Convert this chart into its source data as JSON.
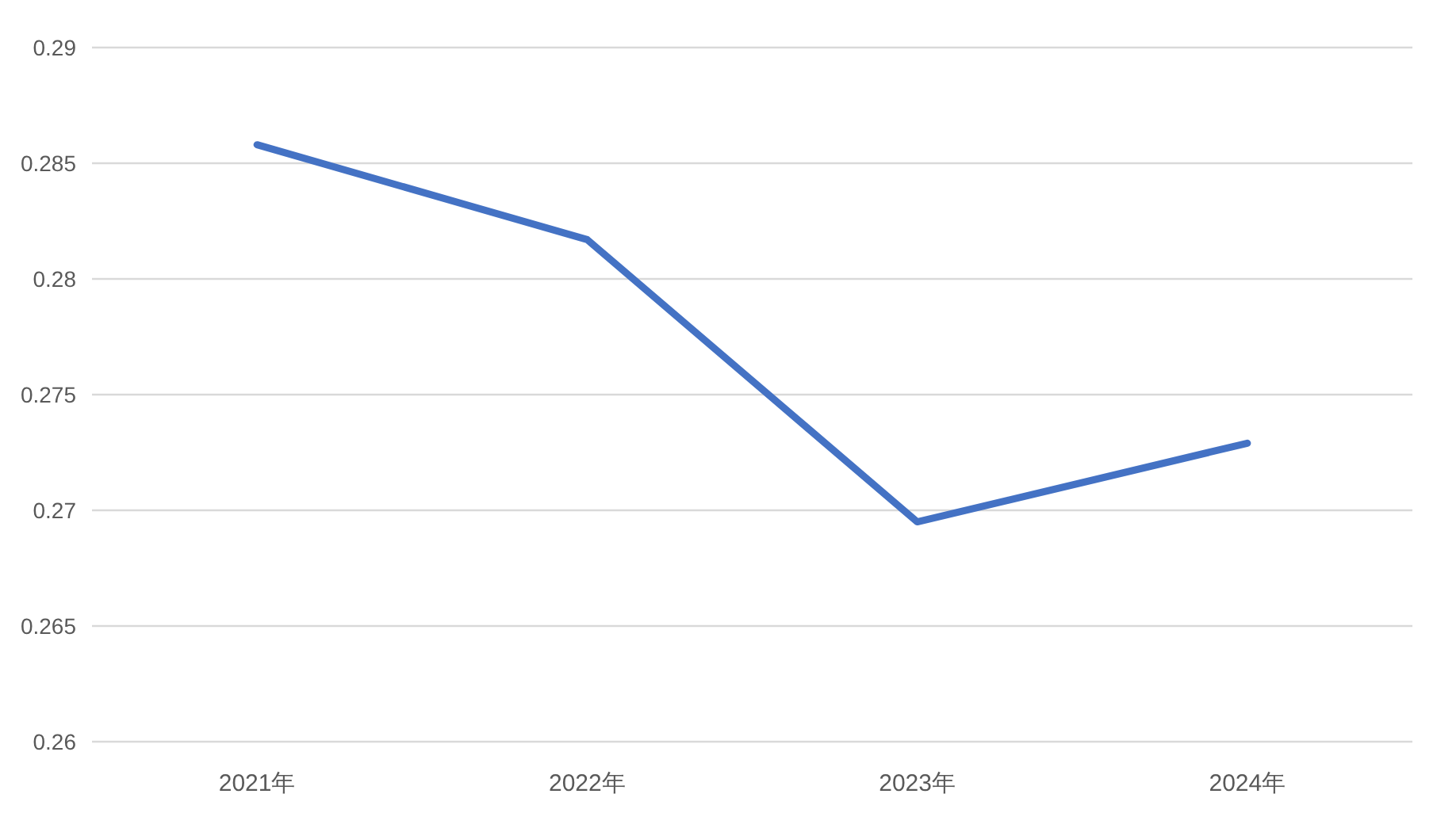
{
  "chart_data": {
    "type": "line",
    "categories": [
      "2021年",
      "2022年",
      "2023年",
      "2024年"
    ],
    "series": [
      {
        "color": "#4472c4",
        "values": [
          0.2858,
          0.2817,
          0.2695,
          0.2729
        ]
      }
    ],
    "ylim": [
      0.26,
      0.29
    ],
    "yticks": [
      0.26,
      0.265,
      0.27,
      0.275,
      0.28,
      0.285,
      0.29
    ],
    "grid": "y",
    "marker": "none",
    "line_style": "solid"
  }
}
